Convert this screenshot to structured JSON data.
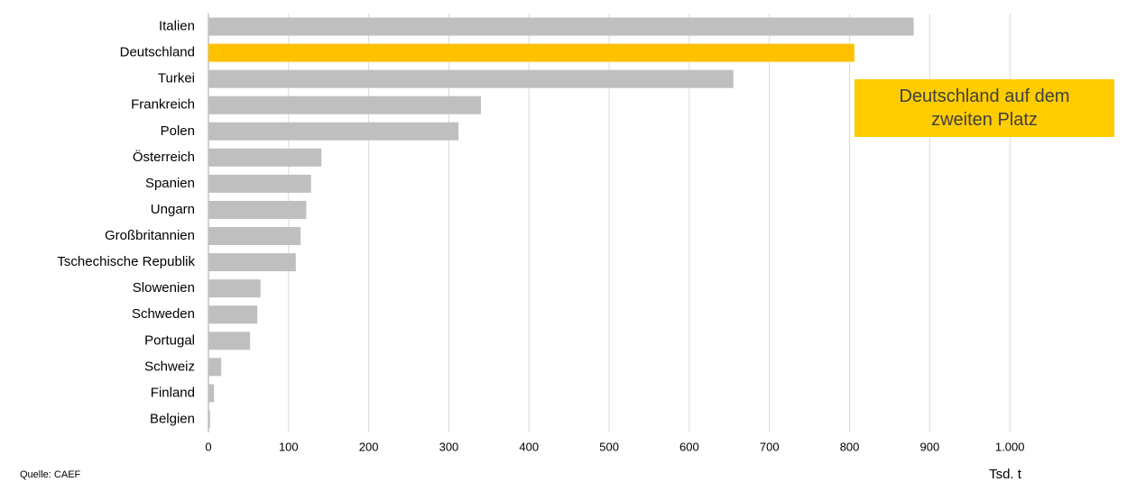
{
  "chart_data": {
    "type": "hbar",
    "categories": [
      "Italien",
      "Deutschland",
      "Turkei",
      "Frankreich",
      "Polen",
      "Österreich",
      "Spanien",
      "Ungarn",
      "Großbritannien",
      "Tschechische Republik",
      "Slowenien",
      "Schweden",
      "Portugal",
      "Schweiz",
      "Finland",
      "Belgien"
    ],
    "values": [
      880,
      806,
      655,
      340,
      312,
      141,
      128,
      122,
      115,
      109,
      65,
      61,
      52,
      16,
      7,
      2
    ],
    "colors": [
      "#bfbfbf",
      "#ffc000",
      "#bfbfbf",
      "#bfbfbf",
      "#bfbfbf",
      "#bfbfbf",
      "#bfbfbf",
      "#bfbfbf",
      "#bfbfbf",
      "#bfbfbf",
      "#bfbfbf",
      "#bfbfbf",
      "#bfbfbf",
      "#bfbfbf",
      "#bfbfbf",
      "#bfbfbf"
    ],
    "xlim": [
      0,
      1100
    ],
    "xticks": [
      0,
      100,
      200,
      300,
      400,
      500,
      600,
      700,
      800,
      900,
      {
        "value": 1000,
        "label": "1.000"
      }
    ],
    "x_label": "Tsd. t",
    "annotation": "Deutschland auf dem zweiten Platz",
    "annotation_color": "#ffcc00",
    "source": "Quelle: CAEF",
    "grid": true
  }
}
